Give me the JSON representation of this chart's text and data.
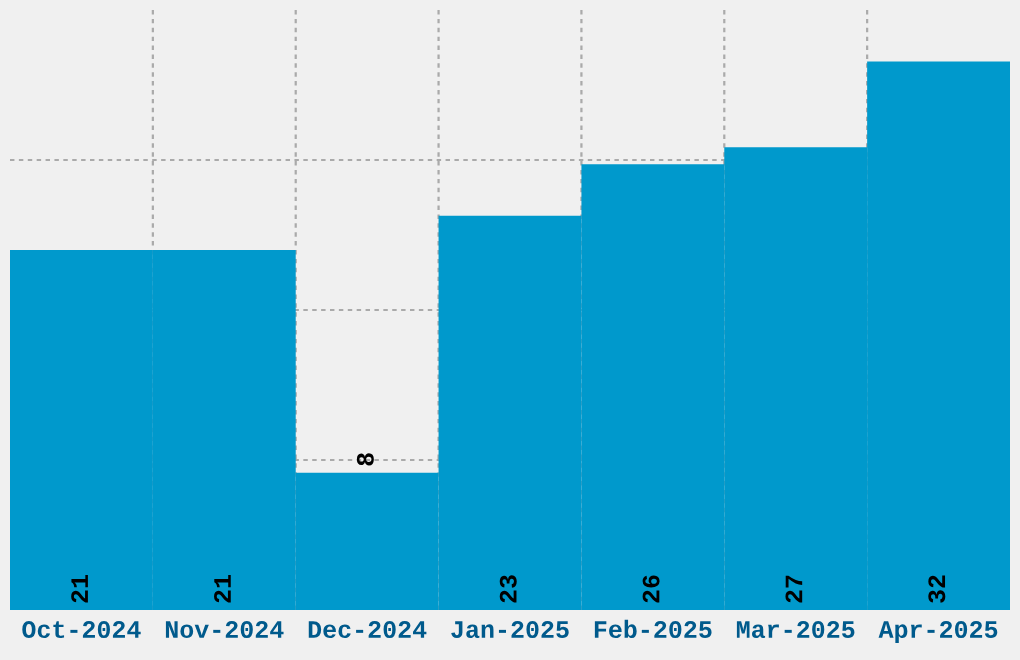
{
  "chart_data": {
    "type": "bar",
    "categories": [
      "Oct-2024",
      "Nov-2024",
      "Dec-2024",
      "Jan-2025",
      "Feb-2025",
      "Mar-2025",
      "Apr-2025"
    ],
    "values": [
      21,
      21,
      8,
      23,
      26,
      27,
      32
    ],
    "color": "#0099cc",
    "ylim": [
      0,
      35
    ],
    "yticks": [
      {
        "value": 8.75,
        "label": null
      },
      {
        "value": 17.5,
        "label": null
      },
      {
        "value": 26.25,
        "label": null
      }
    ],
    "tick_labels": "x",
    "grid": true,
    "data_labels": true
  }
}
